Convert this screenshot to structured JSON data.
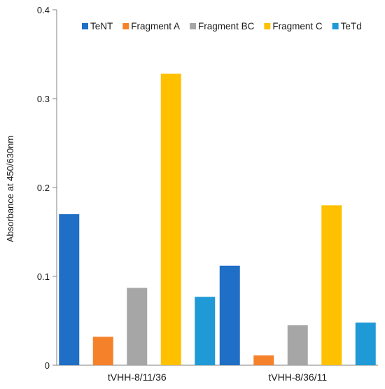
{
  "chart_data": {
    "type": "bar",
    "title": "",
    "xlabel": "",
    "ylabel": "Absorbance at 450/630nm",
    "ylim": [
      0,
      0.4
    ],
    "yticks": [
      "0",
      "0.1",
      "0.2",
      "0.3",
      "0.4"
    ],
    "categories": [
      "tVHH-8/11/36",
      "tVHH-8/36/11"
    ],
    "legend_position": "top",
    "grid": false,
    "series": [
      {
        "name": "TeNT",
        "color": "#1f6fc6",
        "values": [
          0.17,
          0.112
        ]
      },
      {
        "name": "Fragment A",
        "color": "#f5822a",
        "values": [
          0.032,
          0.011
        ]
      },
      {
        "name": "Fragment BC",
        "color": "#a6a6a6",
        "values": [
          0.087,
          0.045
        ]
      },
      {
        "name": "Fragment C",
        "color": "#ffc000",
        "values": [
          0.328,
          0.18
        ]
      },
      {
        "name": "TeTd",
        "color": "#1f9ad6",
        "values": [
          0.077,
          0.048
        ]
      }
    ]
  }
}
